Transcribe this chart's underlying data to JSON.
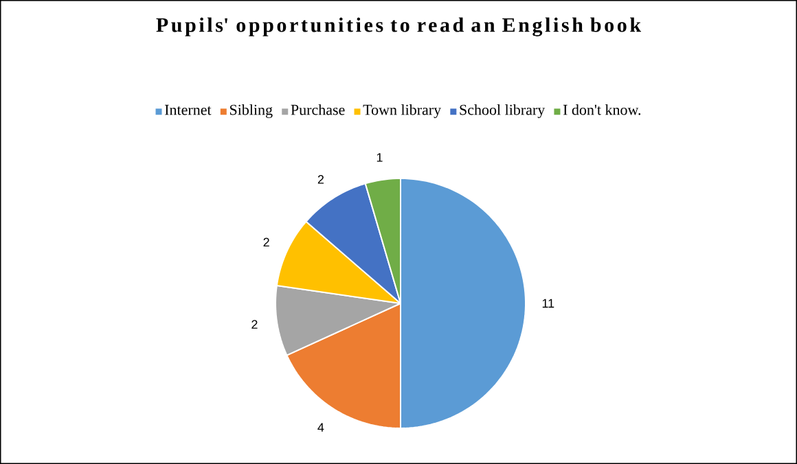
{
  "chart_data": {
    "type": "pie",
    "title": "Pupils' opportunities to read an English book",
    "categories": [
      "Internet",
      "Sibling",
      "Purchase",
      "Town library",
      "School library",
      "I don't know."
    ],
    "values": [
      11,
      4,
      2,
      2,
      2,
      1
    ],
    "colors": [
      "#5b9bd5",
      "#ed7d31",
      "#a5a5a5",
      "#ffc000",
      "#4472c4",
      "#70ad47"
    ],
    "data_labels": true,
    "legend": "top"
  }
}
